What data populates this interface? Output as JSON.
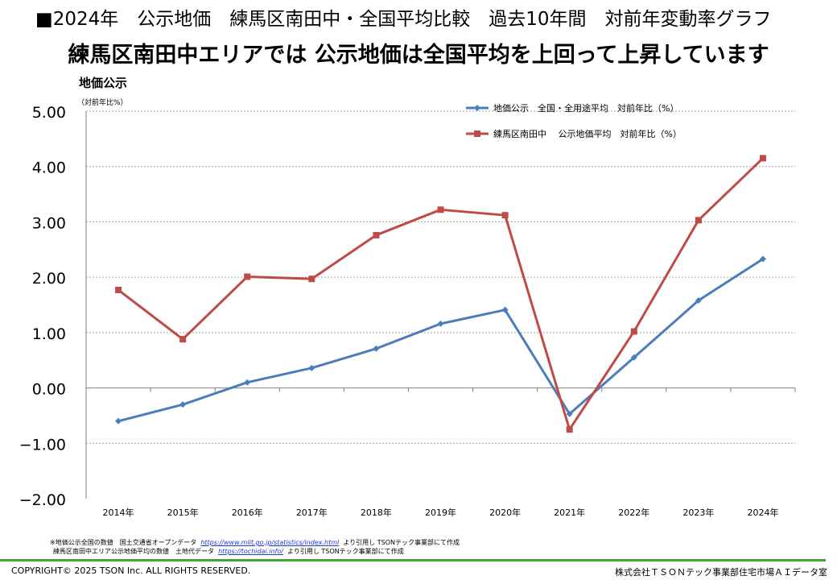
{
  "header": {
    "title": "■2024年　公示地価　練馬区南田中・全国平均比較　過去10年間　対前年変動率グラフ",
    "headline": "練馬区南田中エリアでは 公示地価は全国平均を上回って上昇しています"
  },
  "chart_data": {
    "type": "line",
    "ylabel": "地価公示",
    "ylabel_sub": "（対前年比%）",
    "ylim": [
      -2.0,
      5.0
    ],
    "yticks": [
      "5.00",
      "4.00",
      "3.00",
      "2.00",
      "1.00",
      "0.00",
      "−1.00",
      "−2.00"
    ],
    "categories": [
      "2014年",
      "2015年",
      "2016年",
      "2017年",
      "2018年",
      "2019年",
      "2020年",
      "2021年",
      "2022年",
      "2023年",
      "2024年"
    ],
    "grid": "horizontal dashed",
    "legend_position": "top-right",
    "series": [
      {
        "name": "地価公示　全国・全用途平均　対前年比（%）",
        "color": "#4a7ebb",
        "marker": "diamond",
        "values": [
          -0.6,
          -0.3,
          0.1,
          0.36,
          0.71,
          1.16,
          1.41,
          -0.47,
          0.55,
          1.58,
          2.33
        ]
      },
      {
        "name": "練馬区南田中　 公示地価平均　対前年比（%）",
        "color": "#be4b48",
        "marker": "square",
        "values": [
          1.77,
          0.88,
          2.01,
          1.97,
          2.76,
          3.22,
          3.12,
          -0.75,
          1.02,
          3.03,
          4.15
        ]
      }
    ]
  },
  "footnotes": {
    "line1_text": "※地価公示全国の数値　国土交通省オープンデータ",
    "line1_link": "https://www.mlit.go.jp/statistics/index.html",
    "line1_suffix": "より引用し TSONテック事業部にて作成",
    "line2_text": "練馬区南田中エリア公示地価平均の数値　土地代データ",
    "line2_link": "https://tochidai.info/",
    "line2_suffix": "より引用し TSONテック事業部にて作成"
  },
  "footer": {
    "copyright": "COPYRIGHT© 2025 TSON Inc. ALL RIGHTS RESERVED.",
    "company": "株式会社ＴＳＯＮテック事業部住宅市場ＡＩデータ室"
  }
}
